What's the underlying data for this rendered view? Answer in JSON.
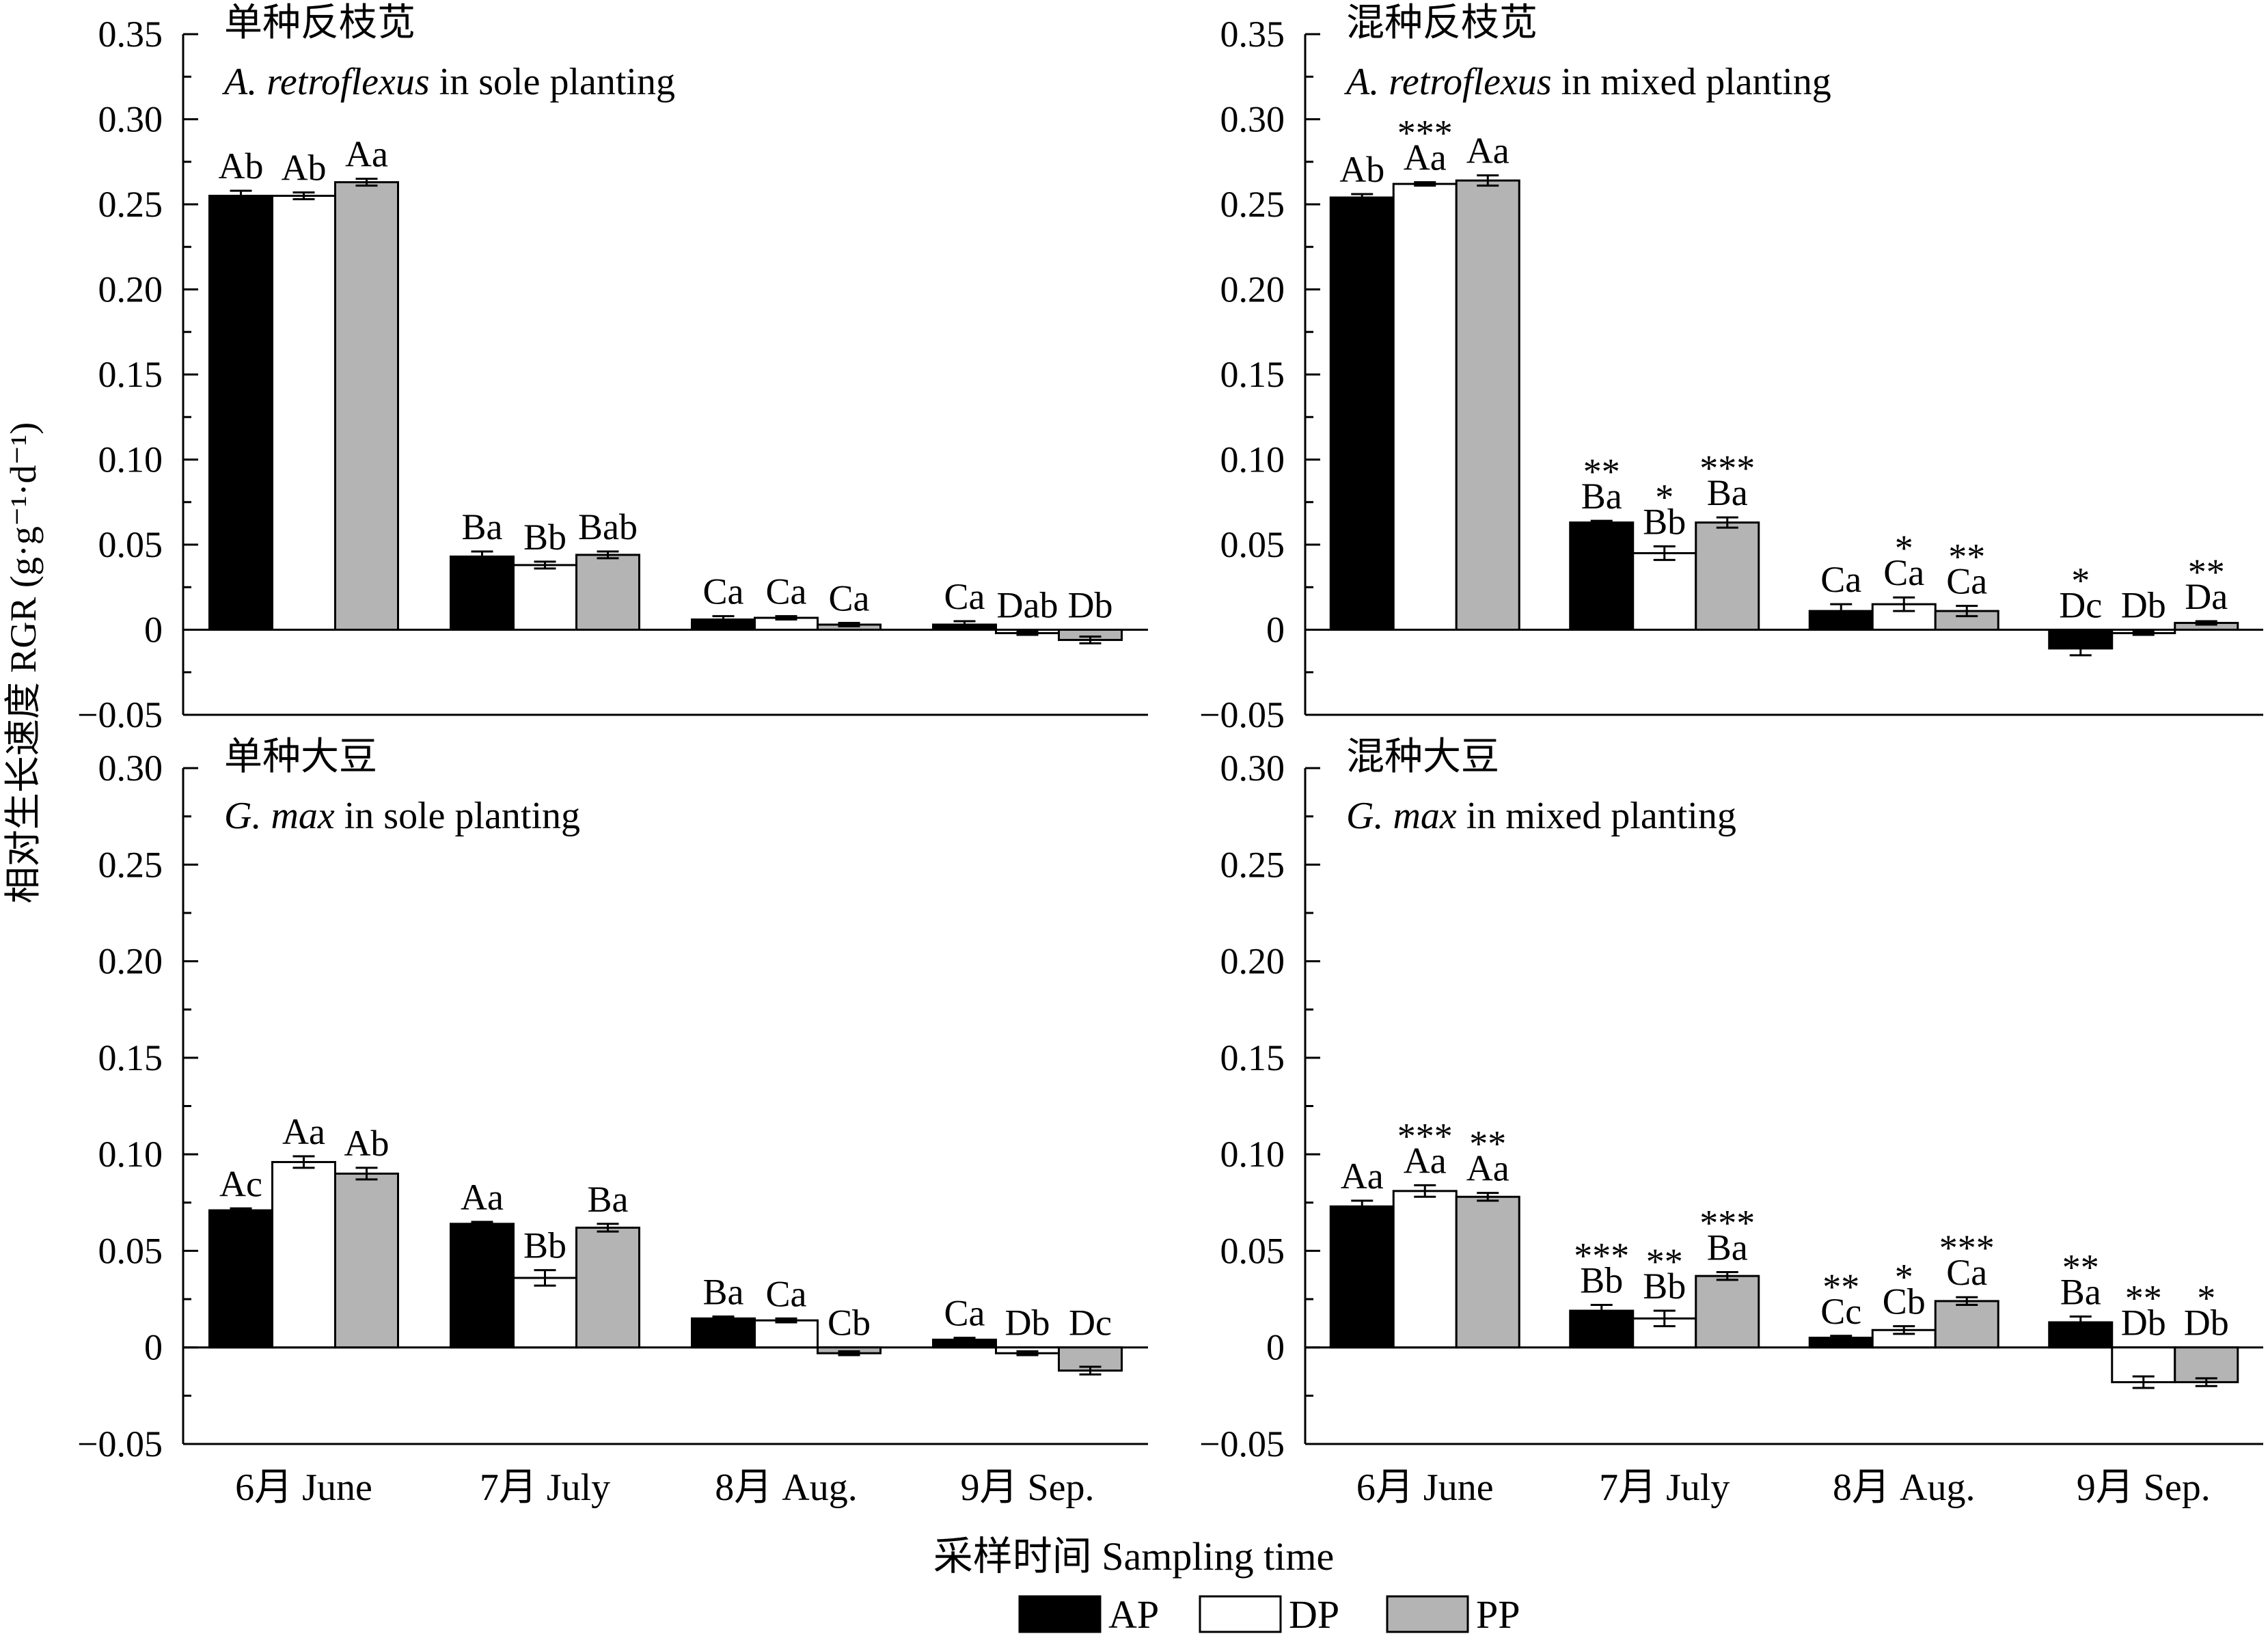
{
  "y_axis_label": "相对生长速度 RGR (g·g⁻¹·d⁻¹)",
  "x_axis_label": "采样时间 Sampling time",
  "x_tick_labels": [
    "6月  June",
    "7月  July",
    "8月  Aug.",
    "9月  Sep."
  ],
  "legend": [
    {
      "name": "AP",
      "fill": "#000000"
    },
    {
      "name": "DP",
      "fill": "#ffffff"
    },
    {
      "name": "PP",
      "fill": "#b4b4b4"
    }
  ],
  "chart_data": [
    {
      "type": "bar",
      "title_cn": "单种反枝苋",
      "title_en_italic": "A. retroflexus",
      "title_en_rest": " in sole planting",
      "ylim": [
        -0.05,
        0.35
      ],
      "yticks": [
        "−0.05",
        "0",
        "0.05",
        "0.10",
        "0.15",
        "0.20",
        "0.25",
        "0.30",
        "0.35"
      ],
      "categories": [
        "6月  June",
        "7月  July",
        "8月  Aug.",
        "9月  Sep."
      ],
      "series": [
        {
          "name": "AP",
          "values": [
            0.255,
            0.043,
            0.006,
            0.003
          ],
          "errors": [
            0.003,
            0.003,
            0.002,
            0.002
          ],
          "labels": [
            "Ab",
            "Ba",
            "Ca",
            "Ca"
          ],
          "stars": [
            "",
            "",
            "",
            ""
          ]
        },
        {
          "name": "DP",
          "values": [
            0.255,
            0.038,
            0.007,
            -0.002
          ],
          "errors": [
            0.002,
            0.002,
            0.001,
            0.001
          ],
          "labels": [
            "Ab",
            "Bb",
            "Ca",
            "Dab"
          ],
          "stars": [
            "",
            "",
            "",
            ""
          ]
        },
        {
          "name": "PP",
          "values": [
            0.263,
            0.044,
            0.003,
            -0.006
          ],
          "errors": [
            0.002,
            0.002,
            0.001,
            0.002
          ],
          "labels": [
            "Aa",
            "Bab",
            "Ca",
            "Db"
          ],
          "stars": [
            "",
            "",
            "",
            ""
          ]
        }
      ]
    },
    {
      "type": "bar",
      "title_cn": "混种反枝苋",
      "title_en_italic": "A. retroflexus",
      "title_en_rest": " in mixed planting",
      "ylim": [
        -0.05,
        0.35
      ],
      "yticks": [
        "−0.05",
        "0",
        "0.05",
        "0.10",
        "0.15",
        "0.20",
        "0.25",
        "0.30",
        "0.35"
      ],
      "categories": [
        "6月  June",
        "7月  July",
        "8月  Aug.",
        "9月  Sep."
      ],
      "series": [
        {
          "name": "AP",
          "values": [
            0.254,
            0.063,
            0.011,
            -0.011
          ],
          "errors": [
            0.002,
            0.001,
            0.004,
            0.004
          ],
          "labels": [
            "Ab",
            "Ba",
            "Ca",
            "Dc"
          ],
          "stars": [
            "",
            "**",
            "",
            "*"
          ]
        },
        {
          "name": "DP",
          "values": [
            0.262,
            0.045,
            0.015,
            -0.002
          ],
          "errors": [
            0.001,
            0.004,
            0.004,
            0.001
          ],
          "labels": [
            "Aa",
            "Bb",
            "Ca",
            "Db"
          ],
          "stars": [
            "***",
            "*",
            "*",
            ""
          ]
        },
        {
          "name": "PP",
          "values": [
            0.264,
            0.063,
            0.011,
            0.004
          ],
          "errors": [
            0.003,
            0.003,
            0.003,
            0.001
          ],
          "labels": [
            "Aa",
            "Ba",
            "Ca",
            "Da"
          ],
          "stars": [
            "",
            "***",
            "**",
            "**"
          ]
        }
      ]
    },
    {
      "type": "bar",
      "title_cn": "单种大豆",
      "title_en_italic": "G. max",
      "title_en_rest": " in sole planting",
      "ylim": [
        -0.05,
        0.3
      ],
      "yticks": [
        "−0.05",
        "0",
        "0.05",
        "0.10",
        "0.15",
        "0.20",
        "0.25",
        "0.30"
      ],
      "categories": [
        "6月  June",
        "7月  July",
        "8月  Aug.",
        "9月  Sep."
      ],
      "series": [
        {
          "name": "AP",
          "values": [
            0.071,
            0.064,
            0.015,
            0.004
          ],
          "errors": [
            0.001,
            0.001,
            0.001,
            0.001
          ],
          "labels": [
            "Ac",
            "Aa",
            "Ba",
            "Ca"
          ],
          "stars": [
            "",
            "",
            "",
            ""
          ]
        },
        {
          "name": "DP",
          "values": [
            0.096,
            0.036,
            0.014,
            -0.003
          ],
          "errors": [
            0.003,
            0.004,
            0.001,
            0.001
          ],
          "labels": [
            "Aa",
            "Bb",
            "Ca",
            "Db"
          ],
          "stars": [
            "",
            "",
            "",
            ""
          ]
        },
        {
          "name": "PP",
          "values": [
            0.09,
            0.062,
            -0.003,
            -0.012
          ],
          "errors": [
            0.003,
            0.002,
            0.001,
            0.002
          ],
          "labels": [
            "Ab",
            "Ba",
            "Cb",
            "Dc"
          ],
          "stars": [
            "",
            "",
            "",
            ""
          ]
        }
      ]
    },
    {
      "type": "bar",
      "title_cn": "混种大豆",
      "title_en_italic": "G. max",
      "title_en_rest": " in mixed planting",
      "ylim": [
        -0.05,
        0.3
      ],
      "yticks": [
        "−0.05",
        "0",
        "0.05",
        "0.10",
        "0.15",
        "0.20",
        "0.25",
        "0.30"
      ],
      "categories": [
        "6月  June",
        "7月  July",
        "8月  Aug.",
        "9月  Sep."
      ],
      "series": [
        {
          "name": "AP",
          "values": [
            0.073,
            0.019,
            0.005,
            0.013
          ],
          "errors": [
            0.003,
            0.003,
            0.001,
            0.003
          ],
          "labels": [
            "Aa",
            "Bb",
            "Cc",
            "Ba"
          ],
          "stars": [
            "",
            "***",
            "**",
            "**"
          ]
        },
        {
          "name": "DP",
          "values": [
            0.081,
            0.015,
            0.009,
            -0.018
          ],
          "errors": [
            0.003,
            0.004,
            0.002,
            0.003
          ],
          "labels": [
            "Aa",
            "Bb",
            "Cb",
            "Db"
          ],
          "stars": [
            "***",
            "**",
            "*",
            "**"
          ]
        },
        {
          "name": "PP",
          "values": [
            0.078,
            0.037,
            0.024,
            -0.018
          ],
          "errors": [
            0.002,
            0.002,
            0.002,
            0.002
          ],
          "labels": [
            "Aa",
            "Ba",
            "Ca",
            "Db"
          ],
          "stars": [
            "**",
            "***",
            "***",
            "*"
          ]
        }
      ]
    }
  ]
}
